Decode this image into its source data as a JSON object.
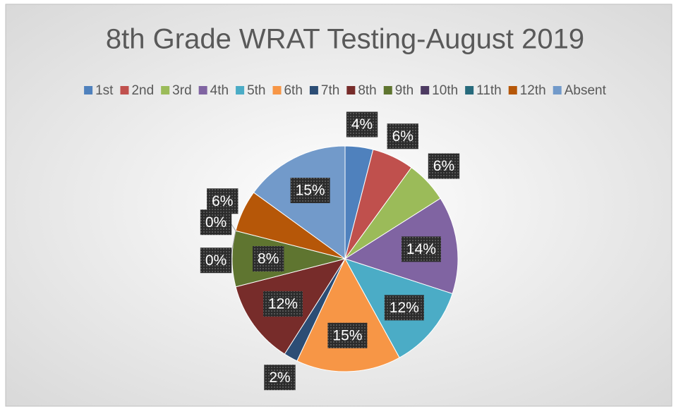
{
  "chart_data": {
    "type": "pie",
    "title": "8th Grade WRAT Testing-August 2019",
    "categories": [
      "1st",
      "2nd",
      "3rd",
      "4th",
      "5th",
      "6th",
      "7th",
      "8th",
      "9th",
      "10th",
      "11th",
      "12th",
      "Absent"
    ],
    "values": [
      4,
      6,
      6,
      14,
      12,
      15,
      2,
      12,
      8,
      0,
      0,
      6,
      15
    ],
    "value_labels": [
      "4%",
      "6%",
      "6%",
      "14%",
      "12%",
      "15%",
      "2%",
      "12%",
      "8%",
      "0%",
      "0%",
      "6%",
      "15%"
    ],
    "colors": [
      "#4f81bd",
      "#c0504d",
      "#9bbb59",
      "#8064a2",
      "#4bacc6",
      "#f79646",
      "#2c4d75",
      "#772c2a",
      "#5f7530",
      "#4d3b62",
      "#276a7c",
      "#b65708",
      "#729aca"
    ],
    "legend": "top"
  }
}
